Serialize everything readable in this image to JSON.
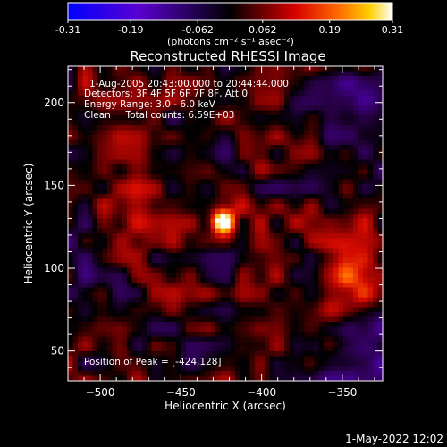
{
  "colorbar": {
    "ticks": [
      "-0.31",
      "-0.19",
      "-0.062",
      "0.062",
      "0.19",
      "0.31"
    ],
    "tick_values": [
      -0.31,
      -0.19,
      -0.062,
      0.062,
      0.19,
      0.31
    ],
    "unit_label": "(photons cm⁻² s⁻¹ asec⁻²)",
    "range": [
      -0.31,
      0.31
    ]
  },
  "chart_data": {
    "type": "heatmap",
    "title": "Reconstructed RHESSI Image",
    "xlabel": "Heliocentric X (arcsec)",
    "ylabel": "Heliocentric Y (arcsec)",
    "xlim": [
      -520,
      -325
    ],
    "ylim": [
      32,
      222
    ],
    "xticks": [
      -500,
      -450,
      -400,
      -350
    ],
    "yticks": [
      50,
      100,
      150,
      200
    ],
    "peak": {
      "x": -424,
      "y": 128
    },
    "sources": [
      {
        "x": -424,
        "y": 128,
        "value": 0.31
      },
      {
        "x": -350,
        "y": 90,
        "value": 0.2
      }
    ],
    "annotations": {
      "time_range": "1-Aug-2005 20:43:00.000 to 20:44:44.000",
      "detectors": "Detectors: 3F 4F 5F 6F 7F 8F, Att 0",
      "energy": "Energy Range: 3.0 - 6.0 keV",
      "method": "Clean     Total counts: 6.59E+03",
      "peak_text": "Position of Peak = [-424,128]"
    },
    "colormap": {
      "name": "blue-purple-black-red-yellow-white",
      "stops": [
        "#0000ff",
        "#6a00c8",
        "#000000",
        "#c80000",
        "#ff5000",
        "#ffc000",
        "#ffffff"
      ]
    }
  },
  "footer": {
    "timestamp": "1-May-2022 12:02"
  }
}
